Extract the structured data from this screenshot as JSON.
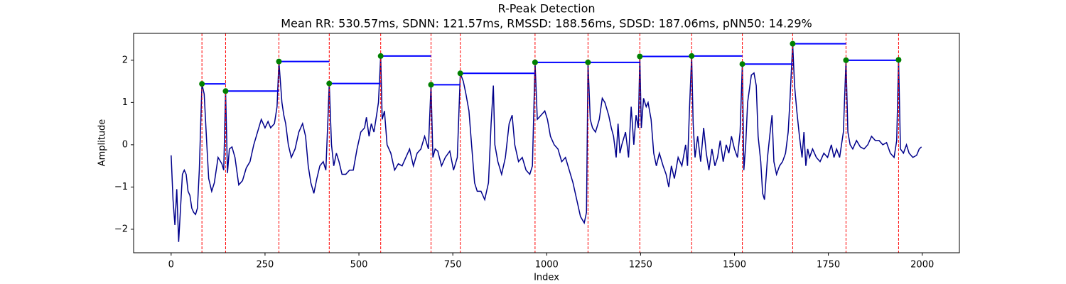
{
  "chart_data": {
    "type": "line",
    "title": "R-Peak Detection",
    "subtitle": "Mean RR: 530.57ms, SDNN: 121.57ms, RMSSD: 188.56ms, SDSD: 187.06ms, pNN50: 14.29%",
    "x_label": "Index",
    "y_label": "Amplitude",
    "xlim": [
      -99.95,
      2098.95
    ],
    "ylim": [
      -2.556,
      2.636
    ],
    "xticks": [
      0,
      250,
      500,
      750,
      1000,
      1250,
      1500,
      1750,
      2000
    ],
    "yticks": [
      {
        "value": -2,
        "label": "−2"
      },
      {
        "value": -1,
        "label": "−1"
      },
      0,
      1,
      2
    ],
    "series": [
      {
        "color": "#00008b",
        "x": [
          0,
          5,
          10,
          15,
          20,
          25,
          30,
          35,
          40,
          45,
          50,
          55,
          60,
          65,
          70,
          75,
          82,
          88,
          95,
          100,
          108,
          115,
          125,
          135,
          140,
          145,
          150,
          155,
          162,
          170,
          180,
          190,
          200,
          210,
          220,
          230,
          240,
          250,
          258,
          265,
          275,
          282,
          287,
          295,
          300,
          305,
          312,
          320,
          330,
          340,
          350,
          358,
          365,
          372,
          380,
          388,
          396,
          405,
          412,
          417,
          421,
          427,
          433,
          440,
          447,
          455,
          465,
          475,
          485,
          495,
          505,
          515,
          520,
          527,
          533,
          540,
          547,
          552,
          558,
          562,
          568,
          575,
          585,
          595,
          605,
          615,
          625,
          635,
          645,
          655,
          665,
          675,
          685,
          692,
          697,
          703,
          710,
          720,
          730,
          742,
          752,
          762,
          770,
          778,
          785,
          793,
          800,
          808,
          815,
          825,
          835,
          845,
          852,
          858,
          862,
          870,
          880,
          890,
          900,
          908,
          915,
          925,
          935,
          945,
          955,
          962,
          969,
          975,
          985,
          995,
          1002,
          1010,
          1020,
          1030,
          1040,
          1050,
          1060,
          1070,
          1080,
          1090,
          1100,
          1106,
          1110,
          1116,
          1122,
          1130,
          1140,
          1148,
          1155,
          1165,
          1172,
          1178,
          1185,
          1190,
          1195,
          1200,
          1210,
          1218,
          1225,
          1232,
          1238,
          1244,
          1248,
          1252,
          1258,
          1265,
          1270,
          1278,
          1285,
          1292,
          1300,
          1310,
          1318,
          1325,
          1332,
          1340,
          1350,
          1360,
          1370,
          1375,
          1380,
          1386,
          1390,
          1395,
          1402,
          1410,
          1418,
          1425,
          1432,
          1440,
          1448,
          1455,
          1462,
          1470,
          1478,
          1485,
          1492,
          1500,
          1508,
          1515,
          1521,
          1525,
          1530,
          1535,
          1545,
          1552,
          1558,
          1563,
          1570,
          1575,
          1580,
          1588,
          1595,
          1600,
          1605,
          1612,
          1620,
          1628,
          1636,
          1643,
          1648,
          1655,
          1660,
          1666,
          1673,
          1680,
          1685,
          1690,
          1695,
          1700,
          1708,
          1718,
          1728,
          1738,
          1748,
          1758,
          1765,
          1772,
          1780,
          1790,
          1797,
          1802,
          1808,
          1815,
          1825,
          1835,
          1845,
          1855,
          1865,
          1875,
          1885,
          1895,
          1905,
          1915,
          1925,
          1932,
          1937,
          1942,
          1950,
          1958,
          1965,
          1975,
          1985,
          1992,
          1998
        ],
        "values": [
          -0.25,
          -1.3,
          -1.9,
          -1.05,
          -2.3,
          -1.5,
          -0.7,
          -0.6,
          -0.7,
          -1.1,
          -1.2,
          -1.5,
          -1.6,
          -1.65,
          -1.5,
          -0.6,
          1.44,
          1.2,
          0.0,
          -0.8,
          -1.1,
          -0.9,
          -0.3,
          -0.45,
          -0.6,
          1.27,
          -0.67,
          -0.1,
          -0.05,
          -0.3,
          -0.95,
          -0.85,
          -0.55,
          -0.4,
          0.0,
          0.3,
          0.6,
          0.4,
          0.55,
          0.4,
          0.5,
          0.9,
          1.97,
          1.0,
          0.7,
          0.5,
          0.0,
          -0.3,
          -0.1,
          0.3,
          0.5,
          0.2,
          -0.5,
          -0.9,
          -1.15,
          -0.8,
          -0.5,
          -0.4,
          -0.6,
          0.5,
          1.45,
          0.0,
          -0.5,
          -0.2,
          -0.4,
          -0.7,
          -0.7,
          -0.6,
          -0.6,
          -0.1,
          0.3,
          0.4,
          0.65,
          0.2,
          0.5,
          0.3,
          0.7,
          1.0,
          2.1,
          0.6,
          0.8,
          0.0,
          -0.2,
          -0.6,
          -0.45,
          -0.5,
          -0.3,
          -0.1,
          -0.5,
          -0.2,
          -0.1,
          0.2,
          -0.1,
          1.42,
          -0.3,
          -0.1,
          -0.15,
          -0.5,
          -0.3,
          -0.15,
          -0.6,
          -0.3,
          1.69,
          1.5,
          1.2,
          0.8,
          0.0,
          -0.9,
          -1.1,
          -1.1,
          -1.3,
          -0.9,
          0.5,
          1.4,
          0.0,
          -0.4,
          -0.7,
          -0.3,
          0.5,
          0.7,
          0.0,
          -0.4,
          -0.3,
          -0.6,
          -0.7,
          -0.5,
          1.95,
          0.6,
          0.7,
          0.8,
          0.6,
          0.2,
          0.0,
          -0.1,
          -0.4,
          -0.3,
          -0.6,
          -0.9,
          -1.3,
          -1.7,
          -1.85,
          -1.6,
          1.95,
          0.6,
          0.4,
          0.3,
          0.6,
          1.1,
          1.0,
          0.7,
          0.4,
          0.2,
          -0.3,
          0.5,
          -0.2,
          0.0,
          0.3,
          -0.3,
          0.9,
          0.0,
          0.7,
          0.4,
          2.09,
          0.4,
          1.1,
          0.9,
          1.0,
          0.6,
          -0.2,
          -0.5,
          -0.2,
          -0.5,
          -0.7,
          -1.0,
          -0.5,
          -0.8,
          -0.3,
          -0.5,
          0.0,
          -0.5,
          0.8,
          2.1,
          0.5,
          -0.3,
          0.2,
          -0.4,
          0.4,
          -0.2,
          -0.6,
          -0.1,
          -0.5,
          -0.3,
          0.1,
          -0.4,
          0.0,
          -0.2,
          0.2,
          -0.1,
          -0.3,
          0.3,
          1.91,
          -0.6,
          0.0,
          1.0,
          1.65,
          1.7,
          1.4,
          0.2,
          -0.4,
          -1.15,
          -1.3,
          -0.3,
          0.3,
          0.7,
          -0.4,
          -0.7,
          -0.5,
          -0.4,
          -0.2,
          0.3,
          1.1,
          2.39,
          1.4,
          0.8,
          0.2,
          -0.3,
          0.3,
          -0.5,
          -0.1,
          -0.3,
          -0.1,
          -0.3,
          -0.4,
          -0.2,
          -0.3,
          0.0,
          -0.3,
          -0.1,
          -0.3,
          0.3,
          2.0,
          0.3,
          0.0,
          -0.1,
          0.1,
          -0.05,
          -0.1,
          0.0,
          0.2,
          0.1,
          0.1,
          0.0,
          0.05,
          -0.2,
          -0.3,
          0.1,
          2.01,
          -0.1,
          -0.2,
          0.0,
          -0.2,
          -0.3,
          -0.25,
          -0.1,
          -0.05
        ]
      }
    ],
    "peaks": {
      "color": "green",
      "line_color": "red",
      "interval_color": "blue",
      "x": [
        82,
        145,
        287,
        421,
        558,
        692,
        770,
        969,
        1110,
        1248,
        1386,
        1521,
        1655,
        1797,
        1937
      ],
      "values": [
        1.44,
        1.27,
        1.97,
        1.45,
        2.1,
        1.42,
        1.69,
        1.95,
        1.95,
        2.09,
        2.1,
        1.91,
        2.39,
        2.0,
        2.01
      ]
    }
  }
}
